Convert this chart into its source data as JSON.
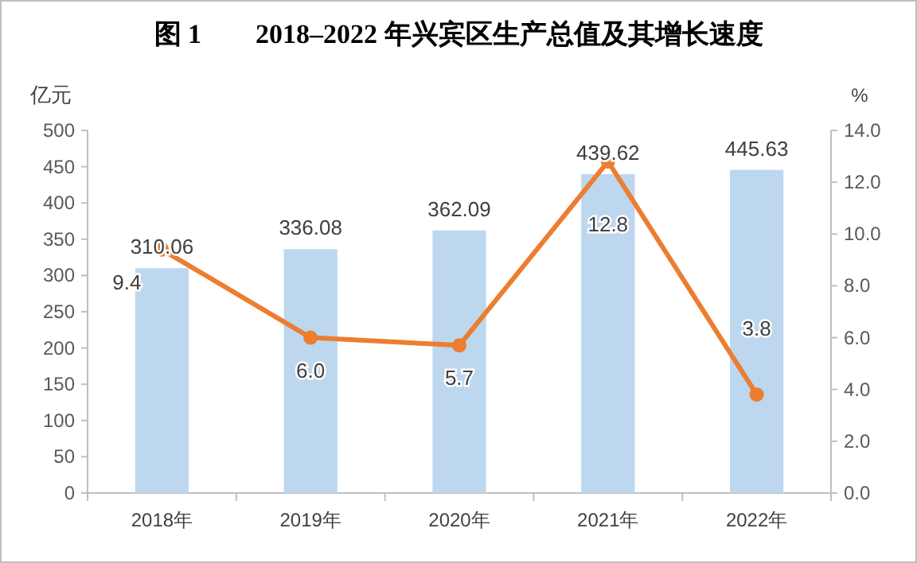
{
  "chart_data": {
    "type": "bar",
    "title": "图 1　　2018–2022 年兴宾区生产总值及其增长速度",
    "ylabel": "亿元",
    "y2label": "%",
    "categories": [
      "2018年",
      "2019年",
      "2020年",
      "2021年",
      "2022年"
    ],
    "series": [
      {
        "color": "#bdd7ee",
        "values": [
          310.06,
          336.08,
          362.09,
          439.62,
          445.63
        ],
        "value_labels": [
          "310.06",
          "336.08",
          "362.09",
          "439.62",
          "445.63"
        ]
      },
      {
        "type": "line",
        "axis": "y2",
        "color": "#ed7d31",
        "marker": "circle",
        "values": [
          9.4,
          6.0,
          5.7,
          12.8,
          3.8
        ],
        "value_labels": [
          "9.4",
          "6.0",
          "5.7",
          "12.8",
          "3.8"
        ]
      }
    ],
    "ylim": [
      0,
      500
    ],
    "yticks": [
      0,
      50,
      100,
      150,
      200,
      250,
      300,
      350,
      400,
      450,
      500
    ],
    "y2lim": [
      0,
      14
    ],
    "y2ticks": [
      {
        "value": 0,
        "label": "0.0"
      },
      {
        "value": 2,
        "label": "2.0"
      },
      {
        "value": 4,
        "label": "4.0"
      },
      {
        "value": 6,
        "label": "6.0"
      },
      {
        "value": 8,
        "label": "8.0"
      },
      {
        "value": 10,
        "label": "10.0"
      },
      {
        "value": 12,
        "label": "12.0"
      },
      {
        "value": 14,
        "label": "14.0"
      }
    ],
    "grid": false
  }
}
